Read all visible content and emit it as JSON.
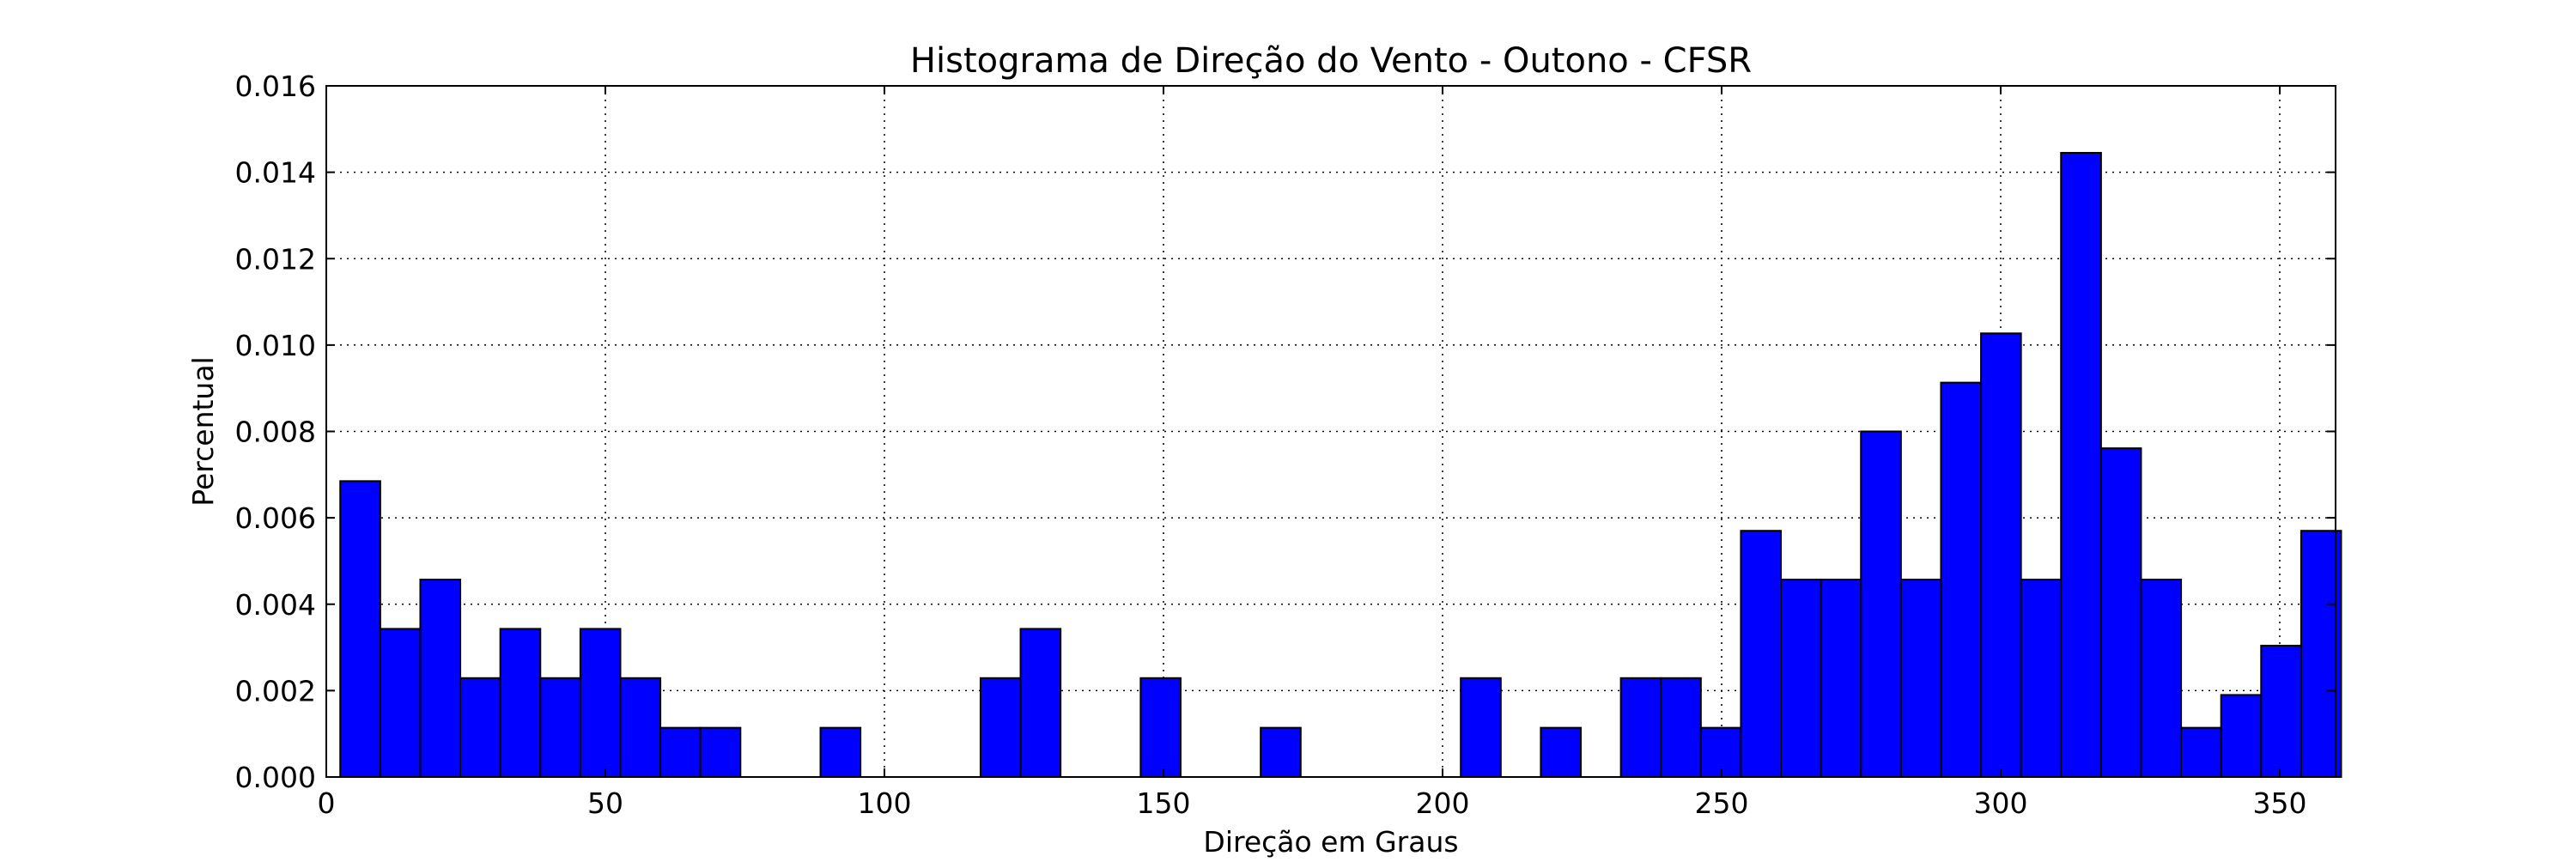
{
  "chart_data": {
    "type": "bar",
    "title": "Histograma de Direção do Vento - Outono - CFSR",
    "xlabel": "Direção em Graus",
    "ylabel": "Percentual",
    "xlim": [
      0,
      360
    ],
    "ylim": [
      0,
      0.016
    ],
    "grid": true,
    "grid_style": "dotted",
    "bar_color": "#0000ff",
    "bar_edge_color": "#000000",
    "x_ticks": [
      0,
      50,
      100,
      150,
      200,
      250,
      300,
      350
    ],
    "y_ticks": [
      0.0,
      0.002,
      0.004,
      0.006,
      0.008,
      0.01,
      0.012,
      0.014,
      0.016
    ],
    "x_tick_labels": [
      "0",
      "50",
      "100",
      "150",
      "200",
      "250",
      "300",
      "350"
    ],
    "y_tick_labels": [
      "0.000",
      "0.002",
      "0.004",
      "0.006",
      "0.008",
      "0.010",
      "0.012",
      "0.014",
      "0.016"
    ],
    "bin_start": 2.5,
    "bin_width": 7.17,
    "values": [
      0.00685,
      0.00343,
      0.00457,
      0.00229,
      0.00343,
      0.00229,
      0.00343,
      0.00229,
      0.00114,
      0.00114,
      0.0,
      0.0,
      0.00114,
      0.0,
      0.0,
      0.0,
      0.00229,
      0.00343,
      0.0,
      0.0,
      0.00229,
      0.0,
      0.0,
      0.00114,
      0.0,
      0.0,
      0.0,
      0.0,
      0.00229,
      0.0,
      0.00114,
      0.0,
      0.00229,
      0.00229,
      0.00114,
      0.0057,
      0.00457,
      0.00457,
      0.008,
      0.00457,
      0.00913,
      0.01027,
      0.00457,
      0.01445,
      0.00761,
      0.00457,
      0.00114,
      0.0019,
      0.00304,
      0.0057
    ]
  }
}
